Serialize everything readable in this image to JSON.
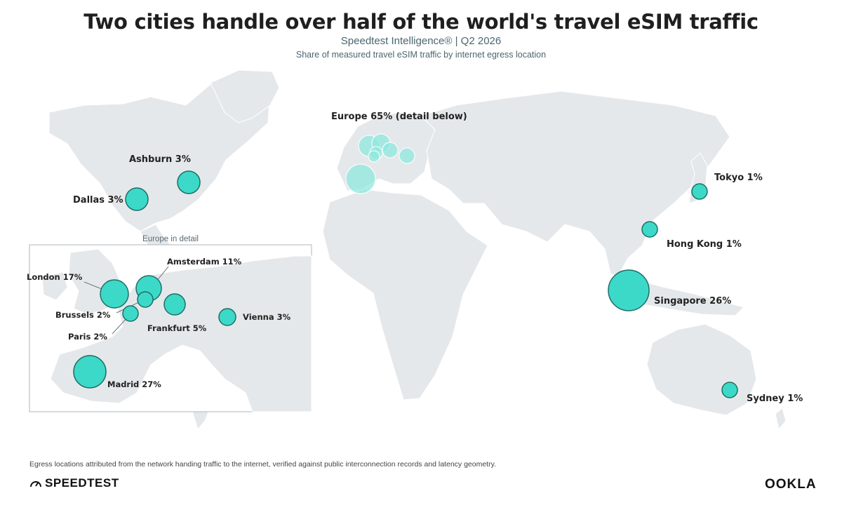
{
  "header": {
    "title": "Two cities handle over half of the world's travel eSIM traffic",
    "subtitle": "Speedtest Intelligence® | Q2 2026",
    "caption": "Share of measured travel eSIM traffic by internet egress location"
  },
  "colors": {
    "land": "#e5e8ea",
    "bubble": "#3dd9c8",
    "bubble_stroke": "#1d6f66",
    "europe_bubble": "#8fe8de",
    "inset_border": "#b0b6ba"
  },
  "regional_summary": {
    "europe_label": "Europe 65% (detail below)"
  },
  "world_cities": [
    {
      "id": "ashburn",
      "label": "Ashburn 3%",
      "share": 3
    },
    {
      "id": "dallas",
      "label": "Dallas 3%",
      "share": 3
    },
    {
      "id": "tokyo",
      "label": "Tokyo 1%",
      "share": 1
    },
    {
      "id": "hong-kong",
      "label": "Hong Kong 1%",
      "share": 1
    },
    {
      "id": "singapore",
      "label": "Singapore 26%",
      "share": 26
    },
    {
      "id": "sydney",
      "label": "Sydney 1%",
      "share": 1
    }
  ],
  "inset": {
    "title": "Europe in detail",
    "cities": [
      {
        "id": "london",
        "label": "London 17%",
        "share": 17
      },
      {
        "id": "amsterdam",
        "label": "Amsterdam 11%",
        "share": 11
      },
      {
        "id": "brussels",
        "label": "Brussels 2%",
        "share": 2
      },
      {
        "id": "paris",
        "label": "Paris 2%",
        "share": 2
      },
      {
        "id": "frankfurt",
        "label": "Frankfurt 5%",
        "share": 5
      },
      {
        "id": "vienna",
        "label": "Vienna 3%",
        "share": 3
      },
      {
        "id": "madrid",
        "label": "Madrid 27%",
        "share": 27
      }
    ]
  },
  "footer": {
    "note": "Egress locations attributed from the network handing traffic to the internet, verified against public interconnection records and latency geometry.",
    "brand_left": "SPEEDTEST",
    "brand_right": "OOKLA"
  }
}
